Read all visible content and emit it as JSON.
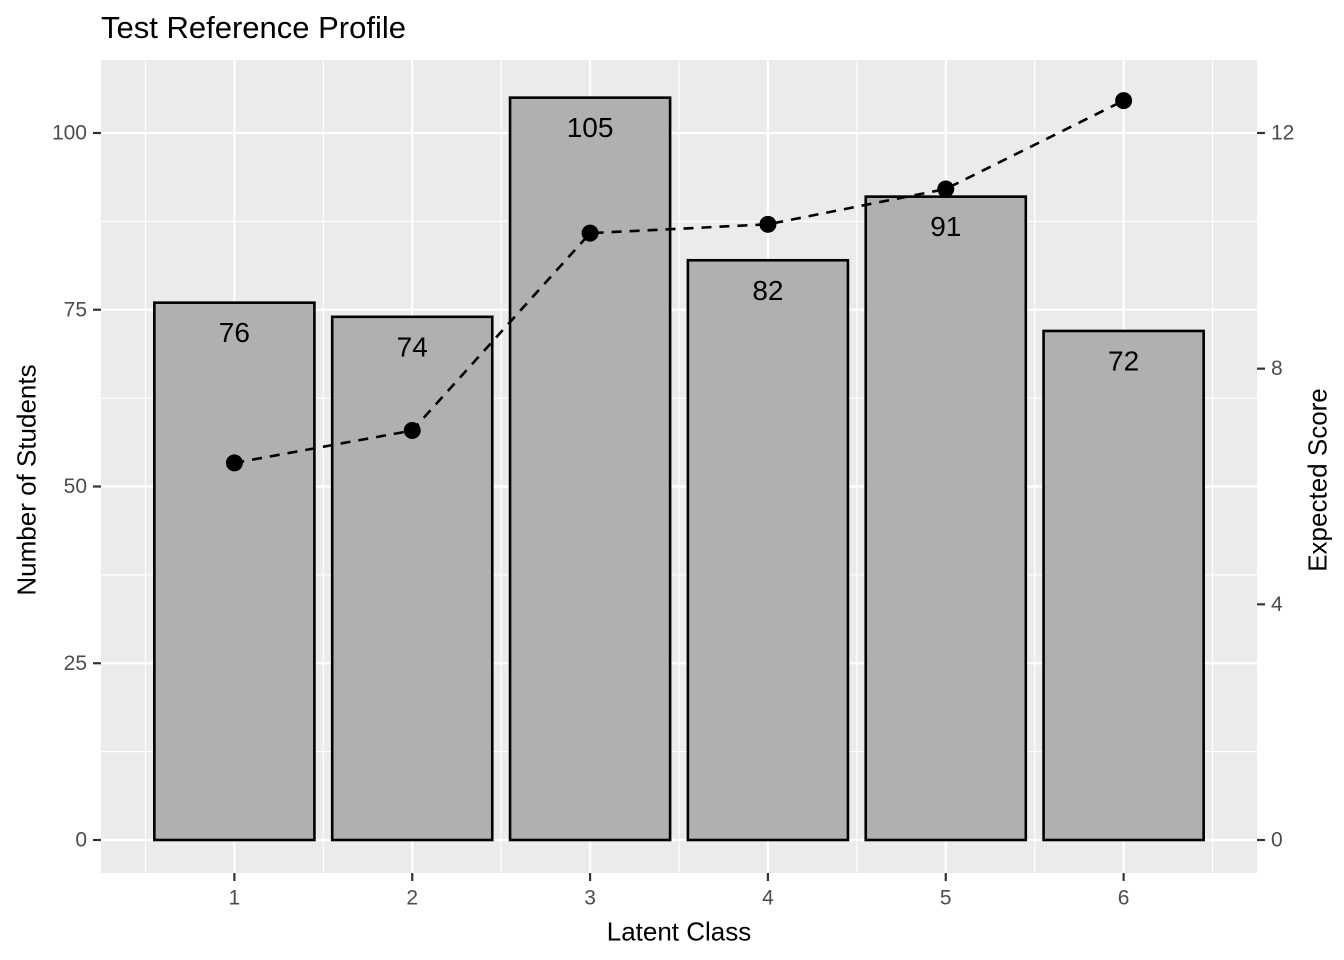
{
  "title": "Test Reference Profile",
  "chart_data": {
    "type": "bar",
    "title": "Test Reference Profile",
    "xlabel": "Latent Class",
    "ylabel_left": "Number of Students",
    "ylabel_right": "Expected Score",
    "categories": [
      1,
      2,
      3,
      4,
      5,
      6
    ],
    "series": [
      {
        "name": "Number of Students",
        "type": "bar",
        "axis": "left",
        "values": [
          76,
          74,
          105,
          82,
          91,
          72
        ],
        "labels": [
          "76",
          "74",
          "105",
          "82",
          "91",
          "72"
        ]
      },
      {
        "name": "Expected Score",
        "type": "line",
        "style": "dashed",
        "marker": "circle",
        "axis": "right",
        "values": [
          6.4,
          6.95,
          10.3,
          10.45,
          11.05,
          12.55
        ]
      }
    ],
    "left_axis": {
      "ticks": [
        0,
        25,
        50,
        75,
        100
      ],
      "minor_gridlines": [
        12.5,
        37.5,
        62.5,
        87.5
      ],
      "range": [
        -4.7,
        110.2
      ]
    },
    "right_axis": {
      "ticks": [
        0,
        4,
        8,
        12
      ],
      "aligned": {
        "right_value": 12,
        "left_value": 100
      }
    },
    "x_axis": {
      "ticks": [
        1,
        2,
        3,
        4,
        5,
        6
      ],
      "minor_gridlines": [
        0.5,
        1.5,
        2.5,
        3.5,
        4.5,
        5.5,
        6.5
      ],
      "range": [
        0.25,
        6.75
      ]
    },
    "grid": "on",
    "legend": "none"
  },
  "colors": {
    "background": "#FFFFFF",
    "panel": "#EBEBEB",
    "gridline": "#FFFFFF",
    "bar_fill": "#B0B0B0",
    "bar_stroke": "#000000",
    "line": "#000000",
    "point": "#000000",
    "tick_mark": "#333333",
    "tick_text": "#4D4D4D",
    "text": "#000000"
  }
}
